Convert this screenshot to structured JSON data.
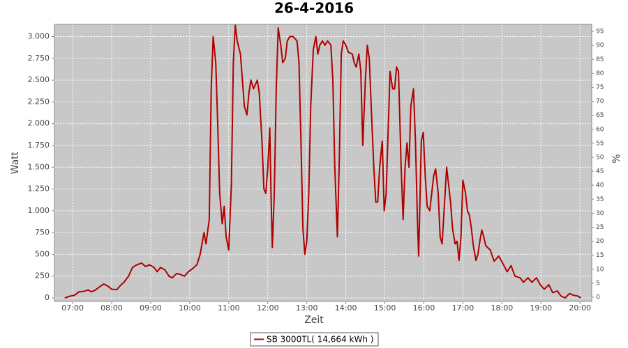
{
  "chart_data": {
    "type": "line",
    "title": "26-4-2016",
    "x_label": "Zeit",
    "y_label": "Watt",
    "y2_label": "%",
    "x": [
      "06:48",
      "06:56",
      "07:03",
      "07:10",
      "07:17",
      "07:24",
      "07:29",
      "07:35",
      "07:42",
      "07:48",
      "07:55",
      "08:00",
      "08:08",
      "08:13",
      "08:19",
      "08:26",
      "08:32",
      "08:39",
      "08:46",
      "08:52",
      "08:58",
      "09:05",
      "09:10",
      "09:15",
      "09:22",
      "09:28",
      "09:33",
      "09:40",
      "09:45",
      "09:52",
      "09:58",
      "10:05",
      "10:11",
      "10:16",
      "10:22",
      "10:25",
      "10:30",
      "10:33",
      "10:36",
      "10:40",
      "10:43",
      "10:46",
      "10:50",
      "10:53",
      "10:56",
      "11:00",
      "11:04",
      "11:07",
      "11:10",
      "11:13",
      "11:18",
      "11:21",
      "11:24",
      "11:28",
      "11:31",
      "11:34",
      "11:38",
      "11:44",
      "11:47",
      "11:51",
      "11:54",
      "11:57",
      "12:00",
      "12:03",
      "12:05",
      "12:07",
      "12:10",
      "12:13",
      "12:16",
      "12:20",
      "12:23",
      "12:27",
      "12:30",
      "12:34",
      "12:39",
      "12:45",
      "12:48",
      "12:51",
      "12:54",
      "12:57",
      "13:00",
      "13:03",
      "13:06",
      "13:10",
      "13:14",
      "13:17",
      "13:20",
      "13:24",
      "13:28",
      "13:32",
      "13:37",
      "13:40",
      "13:43",
      "13:47",
      "13:50",
      "13:53",
      "13:56",
      "14:00",
      "14:04",
      "14:10",
      "14:13",
      "14:16",
      "14:20",
      "14:23",
      "14:26",
      "14:30",
      "14:33",
      "14:36",
      "14:39",
      "14:43",
      "14:46",
      "14:49",
      "14:52",
      "14:56",
      "14:59",
      "15:02",
      "15:05",
      "15:08",
      "15:12",
      "15:15",
      "15:18",
      "15:21",
      "15:25",
      "15:28",
      "15:31",
      "15:34",
      "15:37",
      "15:40",
      "15:44",
      "15:47",
      "15:50",
      "15:52",
      "15:56",
      "15:59",
      "16:02",
      "16:05",
      "16:09",
      "16:12",
      "16:15",
      "16:18",
      "16:22",
      "16:25",
      "16:28",
      "16:31",
      "16:35",
      "16:38",
      "16:41",
      "16:44",
      "16:48",
      "16:51",
      "16:54",
      "16:57",
      "17:00",
      "17:04",
      "17:07",
      "17:10",
      "17:13",
      "17:16",
      "17:20",
      "17:23",
      "17:26",
      "17:29",
      "17:32",
      "17:35",
      "17:42",
      "17:48",
      "17:55",
      "18:01",
      "18:08",
      "18:14",
      "18:20",
      "18:28",
      "18:33",
      "18:40",
      "18:46",
      "18:53",
      "18:59",
      "19:05",
      "19:12",
      "19:18",
      "19:25",
      "19:31",
      "19:37",
      "19:44",
      "19:50",
      "19:57",
      "20:01"
    ],
    "series": [
      {
        "name": "SB 3000TL( 14,664 kWh )",
        "color": "#b00000",
        "values": [
          0,
          20,
          30,
          70,
          75,
          90,
          70,
          90,
          130,
          160,
          130,
          100,
          95,
          140,
          180,
          250,
          350,
          380,
          400,
          360,
          380,
          350,
          300,
          350,
          320,
          250,
          230,
          280,
          270,
          250,
          300,
          340,
          380,
          500,
          750,
          620,
          900,
          2400,
          3000,
          2700,
          2000,
          1200,
          850,
          1050,
          700,
          550,
          1300,
          2700,
          3130,
          2950,
          2800,
          2500,
          2200,
          2100,
          2350,
          2500,
          2400,
          2500,
          2350,
          1800,
          1250,
          1200,
          1500,
          1950,
          1200,
          580,
          1200,
          2400,
          3100,
          2900,
          2700,
          2750,
          2950,
          3000,
          3000,
          2950,
          2700,
          1800,
          800,
          500,
          650,
          1200,
          2200,
          2850,
          3000,
          2800,
          2900,
          2950,
          2900,
          2950,
          2900,
          2500,
          1500,
          700,
          1600,
          2800,
          2950,
          2900,
          2820,
          2800,
          2700,
          2650,
          2800,
          2600,
          1750,
          2500,
          2900,
          2750,
          2200,
          1500,
          1100,
          1100,
          1500,
          1800,
          1000,
          1200,
          1900,
          2600,
          2400,
          2400,
          2650,
          2600,
          1500,
          900,
          1500,
          1780,
          1500,
          2200,
          2400,
          1800,
          900,
          480,
          1800,
          1900,
          1400,
          1050,
          1000,
          1200,
          1400,
          1480,
          1200,
          700,
          620,
          1000,
          1500,
          1300,
          1100,
          800,
          620,
          650,
          430,
          700,
          1350,
          1200,
          1000,
          950,
          800,
          600,
          430,
          500,
          650,
          780,
          700,
          600,
          550,
          420,
          480,
          400,
          300,
          370,
          250,
          230,
          180,
          230,
          180,
          230,
          150,
          100,
          150,
          60,
          80,
          20,
          0,
          50,
          30,
          20,
          0
        ]
      }
    ],
    "xlim": [
      "06:32",
      "20:18"
    ],
    "xticks": [
      "07:00",
      "08:00",
      "09:00",
      "10:00",
      "11:00",
      "12:00",
      "13:00",
      "14:00",
      "15:00",
      "16:00",
      "17:00",
      "18:00",
      "19:00",
      "20:00"
    ],
    "ylim": [
      -40,
      3140
    ],
    "yticks": [
      0,
      250,
      500,
      750,
      {
        "value": 1000,
        "label": "1.000"
      },
      {
        "value": 1250,
        "label": "1.250"
      },
      {
        "value": 1500,
        "label": "1.500"
      },
      {
        "value": 1750,
        "label": "1.750"
      },
      {
        "value": 2000,
        "label": "2.000"
      },
      {
        "value": 2250,
        "label": "2.250"
      },
      {
        "value": 2500,
        "label": "2.500"
      },
      {
        "value": 2750,
        "label": "2.750"
      },
      {
        "value": 3000,
        "label": "3.000"
      }
    ],
    "y2lim": [
      -1.5,
      97.5
    ],
    "y2ticks": [
      0,
      5,
      10,
      15,
      20,
      25,
      30,
      35,
      40,
      45,
      50,
      55,
      60,
      65,
      70,
      75,
      80,
      85,
      90,
      95
    ],
    "grid": true,
    "legend": "bottom"
  }
}
